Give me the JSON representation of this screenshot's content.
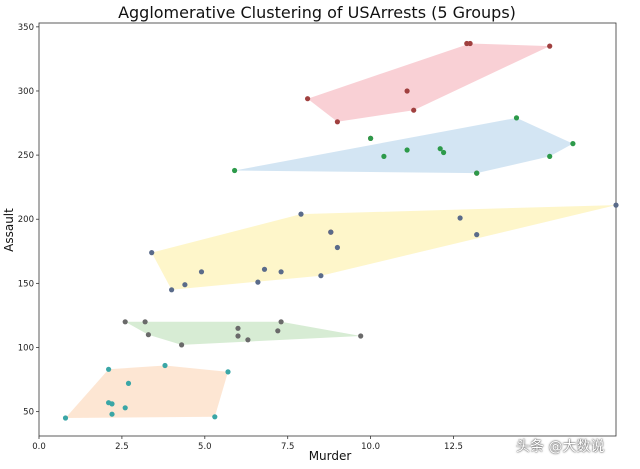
{
  "chart_data": {
    "type": "scatter",
    "title": "Agglomerative Clustering of USArrests (5 Groups)",
    "xlabel": "Murder",
    "ylabel": "Assault",
    "xlim": [
      0,
      17.4
    ],
    "ylim": [
      31,
      353
    ],
    "xticks": [
      "0.0",
      "2.5",
      "5.0",
      "7.5",
      "10.0",
      "12.5"
    ],
    "yticks": [
      "50",
      "100",
      "150",
      "200",
      "250",
      "300",
      "350"
    ],
    "grid": false,
    "clusters": [
      {
        "fill": "#f4a9b3",
        "point_color": "#a0403f",
        "points": [
          [
            13.2,
            236
          ],
          [
            10.0,
            263
          ],
          [
            8.1,
            294
          ],
          [
            8.8,
            190
          ],
          [
            9.0,
            276
          ],
          [
            11.3,
            285
          ],
          [
            12.9,
            337
          ],
          [
            15.4,
            335
          ],
          [
            11.1,
            300
          ],
          [
            13.0,
            337
          ]
        ],
        "hull": [
          [
            8.1,
            294
          ],
          [
            13.0,
            337
          ],
          [
            15.4,
            335
          ],
          [
            11.3,
            285
          ],
          [
            9.0,
            276
          ]
        ]
      },
      {
        "fill": "#aecfea",
        "point_color": "#2d9a4a",
        "points": [
          [
            5.9,
            238
          ],
          [
            10.0,
            263
          ],
          [
            10.4,
            249
          ],
          [
            11.1,
            254
          ],
          [
            12.1,
            255
          ],
          [
            12.2,
            252
          ],
          [
            13.2,
            236
          ],
          [
            14.4,
            279
          ],
          [
            15.4,
            249
          ],
          [
            16.1,
            259
          ]
        ],
        "hull": [
          [
            5.9,
            238
          ],
          [
            14.4,
            279
          ],
          [
            16.1,
            259
          ],
          [
            15.4,
            249
          ],
          [
            13.2,
            236
          ]
        ]
      },
      {
        "fill": "#fdef9e",
        "point_color": "#5a6b8a",
        "points": [
          [
            3.4,
            174
          ],
          [
            4.0,
            145
          ],
          [
            4.4,
            149
          ],
          [
            4.9,
            159
          ],
          [
            6.6,
            151
          ],
          [
            6.8,
            161
          ],
          [
            7.3,
            159
          ],
          [
            7.9,
            204
          ],
          [
            8.5,
            156
          ],
          [
            8.8,
            190
          ],
          [
            9.0,
            178
          ],
          [
            12.7,
            201
          ],
          [
            13.2,
            188
          ],
          [
            17.4,
            211
          ]
        ],
        "hull": [
          [
            3.4,
            174
          ],
          [
            7.9,
            204
          ],
          [
            17.4,
            211
          ],
          [
            8.5,
            156
          ],
          [
            4.0,
            145
          ]
        ]
      },
      {
        "fill": "#b7ddb0",
        "point_color": "#6a6a6a",
        "points": [
          [
            2.6,
            120
          ],
          [
            3.2,
            120
          ],
          [
            3.3,
            110
          ],
          [
            4.3,
            102
          ],
          [
            6.0,
            115
          ],
          [
            6.0,
            109
          ],
          [
            6.3,
            106
          ],
          [
            7.2,
            113
          ],
          [
            7.3,
            120
          ],
          [
            9.7,
            109
          ]
        ],
        "hull": [
          [
            2.6,
            120
          ],
          [
            7.3,
            120
          ],
          [
            9.7,
            109
          ],
          [
            4.3,
            102
          ],
          [
            3.3,
            110
          ]
        ]
      },
      {
        "fill": "#fcd2ae",
        "point_color": "#3aa6a6",
        "points": [
          [
            0.8,
            45
          ],
          [
            2.1,
            83
          ],
          [
            2.1,
            57
          ],
          [
            2.2,
            56
          ],
          [
            2.2,
            48
          ],
          [
            2.6,
            53
          ],
          [
            2.7,
            72
          ],
          [
            3.8,
            86
          ],
          [
            5.3,
            46
          ],
          [
            5.7,
            81
          ]
        ],
        "hull": [
          [
            0.8,
            45
          ],
          [
            2.1,
            83
          ],
          [
            3.8,
            86
          ],
          [
            5.7,
            81
          ],
          [
            5.3,
            46
          ]
        ]
      }
    ]
  },
  "watermark": "头条 @大数说"
}
